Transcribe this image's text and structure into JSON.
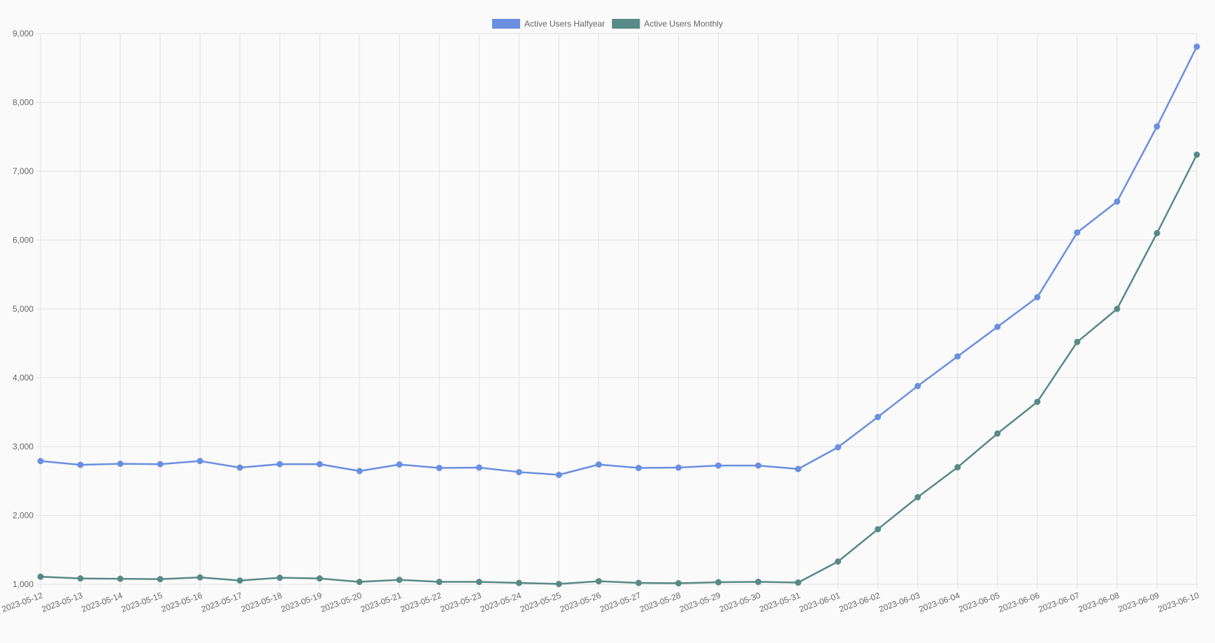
{
  "chart_data": {
    "type": "line",
    "title": "",
    "xlabel": "",
    "ylabel": "",
    "ylim": [
      1000,
      9000
    ],
    "y_ticks": [
      "1,000",
      "2,000",
      "3,000",
      "4,000",
      "5,000",
      "6,000",
      "7,000",
      "8,000",
      "9,000"
    ],
    "grid": true,
    "legend_position": "top-center",
    "x": [
      "2023-05-12",
      "2023-05-13",
      "2023-05-14",
      "2023-05-15",
      "2023-05-16",
      "2023-05-17",
      "2023-05-18",
      "2023-05-19",
      "2023-05-20",
      "2023-05-21",
      "2023-05-22",
      "2023-05-23",
      "2023-05-24",
      "2023-05-25",
      "2023-05-26",
      "2023-05-27",
      "2023-05-28",
      "2023-05-29",
      "2023-05-30",
      "2023-05-31",
      "2023-06-01",
      "2023-06-02",
      "2023-06-03",
      "2023-06-04",
      "2023-06-05",
      "2023-06-06",
      "2023-06-07",
      "2023-06-08",
      "2023-06-09",
      "2023-06-10"
    ],
    "series": [
      {
        "name": "Active Users Halfyear",
        "color": "#6a8fe0",
        "values": [
          2790,
          2735,
          2750,
          2745,
          2790,
          2695,
          2745,
          2745,
          2645,
          2740,
          2690,
          2695,
          2630,
          2590,
          2740,
          2690,
          2695,
          2725,
          2725,
          2675,
          2990,
          3430,
          3880,
          4310,
          4740,
          5170,
          6110,
          6560,
          7650,
          8810
        ]
      },
      {
        "name": "Active Users Monthly",
        "color": "#578a86",
        "values": [
          1110,
          1085,
          1080,
          1075,
          1100,
          1055,
          1095,
          1085,
          1035,
          1065,
          1035,
          1035,
          1020,
          1005,
          1045,
          1020,
          1015,
          1030,
          1035,
          1025,
          1330,
          1800,
          2265,
          2700,
          3190,
          3650,
          4520,
          5000,
          6100,
          7240
        ]
      }
    ]
  }
}
